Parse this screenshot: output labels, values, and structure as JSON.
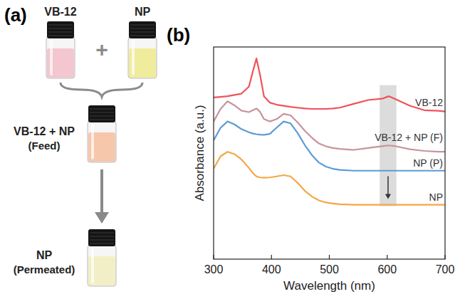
{
  "panel_a": {
    "panel_label": "(a)",
    "vials": [
      {
        "label": "VB-12"
      },
      {
        "label": "NP"
      }
    ],
    "plus": "+",
    "feed": {
      "label": "VB-12 + NP",
      "sublabel": "(Feed)"
    },
    "permeated": {
      "label": "NP",
      "sublabel": "(Permeated)"
    }
  },
  "chart_data": {
    "type": "line",
    "panel_label": "(b)",
    "x_label": "Wavelength (nm)",
    "y_label": "Absorbance (a.u.)",
    "x": [
      300,
      312,
      324,
      336,
      348,
      361,
      368,
      374,
      380,
      387,
      397,
      409,
      421,
      433,
      445,
      458,
      470,
      482,
      494,
      506,
      518,
      542,
      567,
      591,
      603,
      615,
      639,
      664,
      688,
      700
    ],
    "xlim": [
      300,
      700
    ],
    "xticks": [
      300,
      400,
      500,
      600,
      700
    ],
    "ylim": [
      0,
      10
    ],
    "tick_labels": "x",
    "series": [
      {
        "name": "VB-12",
        "color": "#f0525a",
        "values": [
          7.62,
          7.65,
          7.68,
          7.74,
          7.8,
          8.13,
          8.87,
          9.46,
          8.72,
          7.68,
          7.38,
          7.28,
          7.23,
          7.18,
          7.14,
          7.1,
          7.08,
          7.08,
          7.08,
          7.1,
          7.14,
          7.32,
          7.5,
          7.56,
          7.68,
          7.53,
          7.23,
          7.02,
          6.99,
          6.96
        ]
      },
      {
        "name": "VB-12 + NP (F)",
        "color": "#c8939c",
        "values": [
          6.49,
          7.08,
          7.44,
          7.25,
          7.0,
          6.93,
          7.02,
          7.1,
          6.95,
          6.6,
          6.49,
          6.6,
          6.85,
          6.78,
          6.45,
          6.04,
          5.72,
          5.45,
          5.32,
          5.24,
          5.2,
          5.15,
          5.24,
          5.32,
          5.36,
          5.32,
          5.18,
          5.1,
          5.06,
          5.06
        ]
      },
      {
        "name": "NP (P)",
        "color": "#5b9bd5",
        "values": [
          5.6,
          6.19,
          6.49,
          6.35,
          6.13,
          5.98,
          5.92,
          5.89,
          5.87,
          5.86,
          5.9,
          6.2,
          6.49,
          6.4,
          5.95,
          5.36,
          4.9,
          4.55,
          4.36,
          4.26,
          4.21,
          4.17,
          4.17,
          4.17,
          4.17,
          4.17,
          4.17,
          4.17,
          4.17,
          4.17
        ]
      },
      {
        "name": "NP",
        "color": "#f5a742",
        "values": [
          4.26,
          4.85,
          5.06,
          4.95,
          4.7,
          4.3,
          4.05,
          3.9,
          3.85,
          3.84,
          3.85,
          3.9,
          3.96,
          3.9,
          3.6,
          3.21,
          2.95,
          2.77,
          2.67,
          2.62,
          2.59,
          2.56,
          2.56,
          2.56,
          2.56,
          2.56,
          2.56,
          2.56,
          2.56,
          2.56
        ]
      }
    ],
    "band": {
      "x": [
        587,
        616
      ],
      "y": [
        2.5,
        8.2
      ]
    }
  }
}
